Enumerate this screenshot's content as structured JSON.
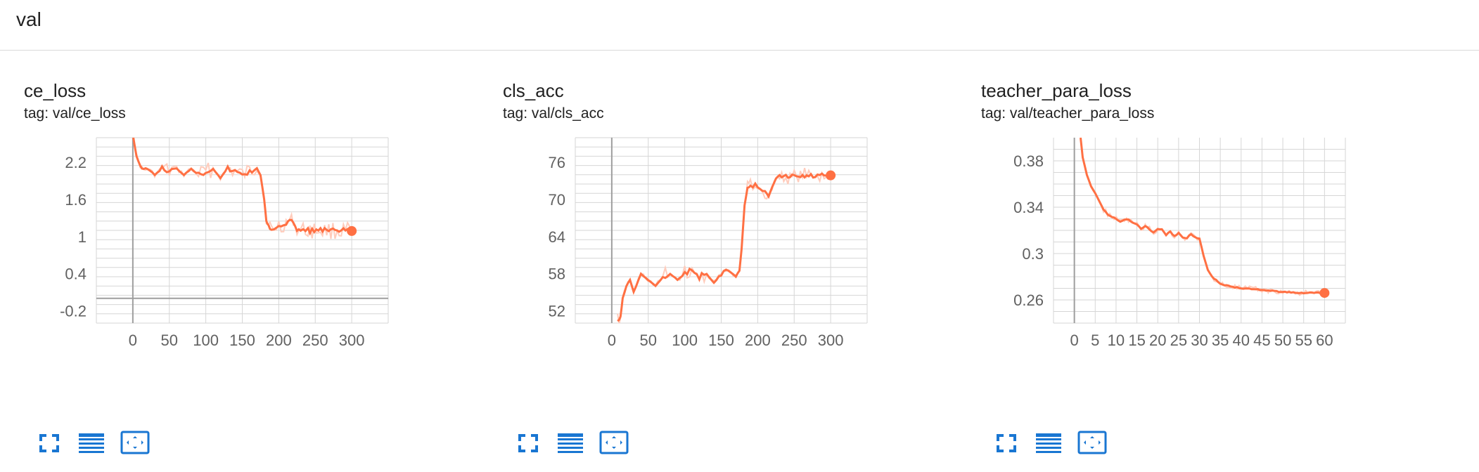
{
  "section": {
    "title": "val"
  },
  "colors": {
    "smoothed": "#ff7043",
    "raw": "#ffccbc",
    "grid": "#d6d6d6",
    "axis": "#9e9e9e",
    "button": "#1976d2"
  },
  "toolbar_icons": [
    "fullscreen-icon",
    "toggle-y-log-icon",
    "fit-domain-icon"
  ],
  "charts": [
    {
      "title": "ce_loss",
      "tag": "tag: val/ce_loss",
      "yticks": [
        "2.2",
        "1.6",
        "1",
        "0.4",
        "-0.2"
      ],
      "xticks": [
        "0",
        "50",
        "100",
        "150",
        "200",
        "250",
        "300"
      ]
    },
    {
      "title": "cls_acc",
      "tag": "tag: val/cls_acc",
      "yticks": [
        "76",
        "70",
        "64",
        "58",
        "52"
      ],
      "xticks": [
        "0",
        "50",
        "100",
        "150",
        "200",
        "250",
        "300"
      ]
    },
    {
      "title": "teacher_para_loss",
      "tag": "tag: val/teacher_para_loss",
      "yticks": [
        "0.38",
        "0.34",
        "0.3",
        "0.26"
      ],
      "xticks": [
        "0",
        "5",
        "10",
        "15",
        "20",
        "25",
        "30",
        "35",
        "40",
        "45",
        "50",
        "55",
        "60"
      ]
    }
  ],
  "chart_data": [
    {
      "type": "line",
      "title": "ce_loss",
      "subtitle": "tag: val/ce_loss",
      "xlim": [
        -50,
        350
      ],
      "ylim": [
        -0.4,
        2.6
      ],
      "grid": true,
      "series": [
        {
          "x": [
            0,
            5,
            10,
            15,
            20,
            30,
            40,
            50,
            60,
            70,
            80,
            90,
            100,
            110,
            120,
            130,
            140,
            150,
            160,
            170,
            175,
            180,
            183,
            186,
            190,
            200,
            210,
            215,
            220,
            225,
            230,
            240,
            260,
            280,
            300
          ],
          "y": [
            2.65,
            2.3,
            2.15,
            2.05,
            2.1,
            2.0,
            2.1,
            2.05,
            2.1,
            2.0,
            2.1,
            2.0,
            2.05,
            2.1,
            1.95,
            2.1,
            2.05,
            2.0,
            2.05,
            2.1,
            2.0,
            1.6,
            1.25,
            1.15,
            1.13,
            1.17,
            1.22,
            1.25,
            1.22,
            1.12,
            1.1,
            1.1,
            1.1,
            1.09,
            1.09
          ]
        }
      ]
    },
    {
      "type": "line",
      "title": "cls_acc",
      "subtitle": "tag: val/cls_acc",
      "xlim": [
        -50,
        350
      ],
      "ylim": [
        50,
        80
      ],
      "grid": true,
      "series": [
        {
          "x": [
            8,
            12,
            15,
            20,
            25,
            30,
            40,
            50,
            60,
            70,
            80,
            90,
            100,
            110,
            120,
            130,
            140,
            150,
            160,
            170,
            175,
            178,
            182,
            186,
            190,
            200,
            210,
            215,
            220,
            225,
            230,
            250,
            270,
            300
          ],
          "y": [
            50.5,
            51,
            54,
            56,
            57,
            55,
            58,
            57,
            56,
            57.5,
            58,
            57,
            58,
            58.5,
            57.5,
            58,
            56.5,
            58,
            58.5,
            57.5,
            58.5,
            62,
            69,
            72,
            72.5,
            72,
            71,
            70.5,
            72,
            73.5,
            73.7,
            73.7,
            73.8,
            73.9
          ]
        }
      ]
    },
    {
      "type": "line",
      "title": "teacher_para_loss",
      "subtitle": "tag: val/teacher_para_loss",
      "xlim": [
        -5,
        65
      ],
      "ylim": [
        0.24,
        0.4
      ],
      "grid": true,
      "series": [
        {
          "x": [
            1.5,
            2,
            3,
            4,
            5,
            6,
            7,
            8,
            9,
            10,
            11,
            12,
            13,
            14,
            15,
            16,
            17,
            18,
            19,
            20,
            21,
            22,
            23,
            24,
            25,
            26,
            27,
            28,
            29,
            30,
            31,
            32,
            33,
            34,
            35,
            37,
            40,
            44,
            46,
            50,
            55,
            60
          ],
          "y": [
            0.4,
            0.383,
            0.368,
            0.358,
            0.352,
            0.345,
            0.338,
            0.334,
            0.332,
            0.33,
            0.327,
            0.329,
            0.329,
            0.327,
            0.325,
            0.321,
            0.324,
            0.321,
            0.318,
            0.321,
            0.321,
            0.316,
            0.319,
            0.315,
            0.318,
            0.314,
            0.313,
            0.317,
            0.314,
            0.313,
            0.298,
            0.286,
            0.28,
            0.277,
            0.274,
            0.272,
            0.27,
            0.269,
            0.268,
            0.267,
            0.266,
            0.266
          ]
        }
      ]
    }
  ]
}
